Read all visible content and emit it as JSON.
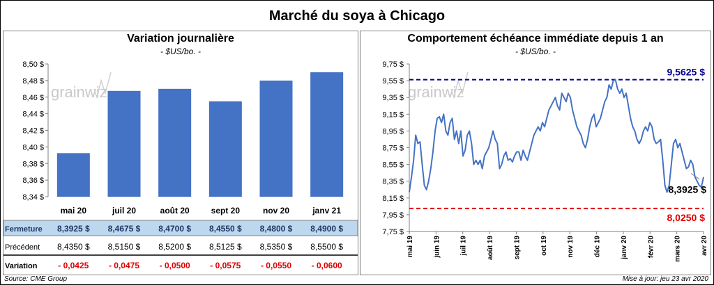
{
  "title": "Marché du soya à Chicago",
  "left": {
    "title": "Variation journalière",
    "unit": "- $US/bo. -",
    "watermark": "grainwiz",
    "row_labels": {
      "close": "Fermeture",
      "previous": "Précédent",
      "change": "Variation"
    },
    "close_text": [
      "8,3925 $",
      "8,4675 $",
      "8,4700 $",
      "8,4550 $",
      "8,4800 $",
      "8,4900 $"
    ],
    "previous_text": [
      "8,4350 $",
      "8,5150 $",
      "8,5200 $",
      "8,5125 $",
      "8,5350 $",
      "8,5500 $"
    ],
    "change_text": [
      "- 0,0425",
      "- 0,0475",
      "- 0,0500",
      "- 0,0575",
      "- 0,0550",
      "- 0,0600"
    ]
  },
  "right": {
    "title": "Comportement échéance immédiate depuis 1 an",
    "unit": "- $US/bo. -",
    "watermark": "grainwiz",
    "high_label": "9,5625 $",
    "low_label": "8,0250 $",
    "last_label": "8,3925 $"
  },
  "source": "Source: CME Group",
  "updated": "Mise à jour: jeu 23 avr 2020",
  "colors": {
    "bar": "#4472c4",
    "line": "#4472c4",
    "high": "#00008b",
    "low": "#e00000",
    "change_text": "#e00000",
    "close_row_bg": "#bdd7ee"
  },
  "chart_data": [
    {
      "type": "bar",
      "title": "Variation journalière",
      "ylabel": "- $US/bo. -",
      "categories": [
        "mai 20",
        "juil 20",
        "août 20",
        "sept 20",
        "nov 20",
        "janv 21"
      ],
      "values": [
        8.3925,
        8.4675,
        8.47,
        8.455,
        8.48,
        8.49
      ],
      "ylim": [
        8.34,
        8.5
      ],
      "yticks": [
        "8,34 $",
        "8,36 $",
        "8,38 $",
        "8,40 $",
        "8,42 $",
        "8,44 $",
        "8,46 $",
        "8,48 $",
        "8,50 $"
      ],
      "grid": false
    },
    {
      "type": "line",
      "title": "Comportement échéance immédiate depuis 1 an",
      "ylabel": "- $US/bo. -",
      "ylim": [
        7.75,
        9.75
      ],
      "yticks": [
        "7,75 $",
        "7,95 $",
        "8,15 $",
        "8,35 $",
        "8,55 $",
        "8,75 $",
        "8,95 $",
        "9,15 $",
        "9,35 $",
        "9,55 $",
        "9,75 $"
      ],
      "xticks": [
        "mai 19",
        "juin 19",
        "juil 19",
        "août 19",
        "sept 19",
        "oct 19",
        "nov 19",
        "déc 19",
        "janv 20",
        "févr 20",
        "mars 20",
        "avr 20"
      ],
      "x_start": "2019-04-23",
      "x_end": "2020-04-23",
      "high": 9.5625,
      "low": 8.025,
      "last": 8.3925,
      "series": [
        {
          "values": [
            8.22,
            8.4,
            8.6,
            8.9,
            8.8,
            8.82,
            8.55,
            8.3,
            8.25,
            8.35,
            8.5,
            8.7,
            8.95,
            9.1,
            9.12,
            9.05,
            9.15,
            8.95,
            8.9,
            9.05,
            9.1,
            8.85,
            8.95,
            8.8,
            8.95,
            8.65,
            8.72,
            8.9,
            8.95,
            8.8,
            8.55,
            8.6,
            8.55,
            8.6,
            8.5,
            8.65,
            8.7,
            8.75,
            8.85,
            8.95,
            8.85,
            8.8,
            8.5,
            8.55,
            8.65,
            8.7,
            8.6,
            8.62,
            8.58,
            8.65,
            8.7,
            8.7,
            8.6,
            8.72,
            8.65,
            8.6,
            8.7,
            8.8,
            8.9,
            8.95,
            9.0,
            8.95,
            9.05,
            9.0,
            9.1,
            9.2,
            9.25,
            9.3,
            9.35,
            9.25,
            9.2,
            9.4,
            9.35,
            9.3,
            9.4,
            9.35,
            9.2,
            9.1,
            9.0,
            8.95,
            8.9,
            8.8,
            8.75,
            8.85,
            9.0,
            9.1,
            9.15,
            9.0,
            9.05,
            9.1,
            9.2,
            9.3,
            9.35,
            9.5,
            9.45,
            9.55,
            9.56,
            9.45,
            9.4,
            9.45,
            9.35,
            9.4,
            9.25,
            9.1,
            9.0,
            8.95,
            8.85,
            8.8,
            8.85,
            8.95,
            9.0,
            8.95,
            9.05,
            9.0,
            8.85,
            8.8,
            8.82,
            8.85,
            8.6,
            8.3,
            8.22,
            8.3,
            8.55,
            8.8,
            8.85,
            8.75,
            8.8,
            8.7,
            8.6,
            8.5,
            8.52,
            8.6,
            8.55,
            8.4,
            8.35,
            8.3,
            8.28,
            8.4
          ]
        }
      ]
    }
  ]
}
